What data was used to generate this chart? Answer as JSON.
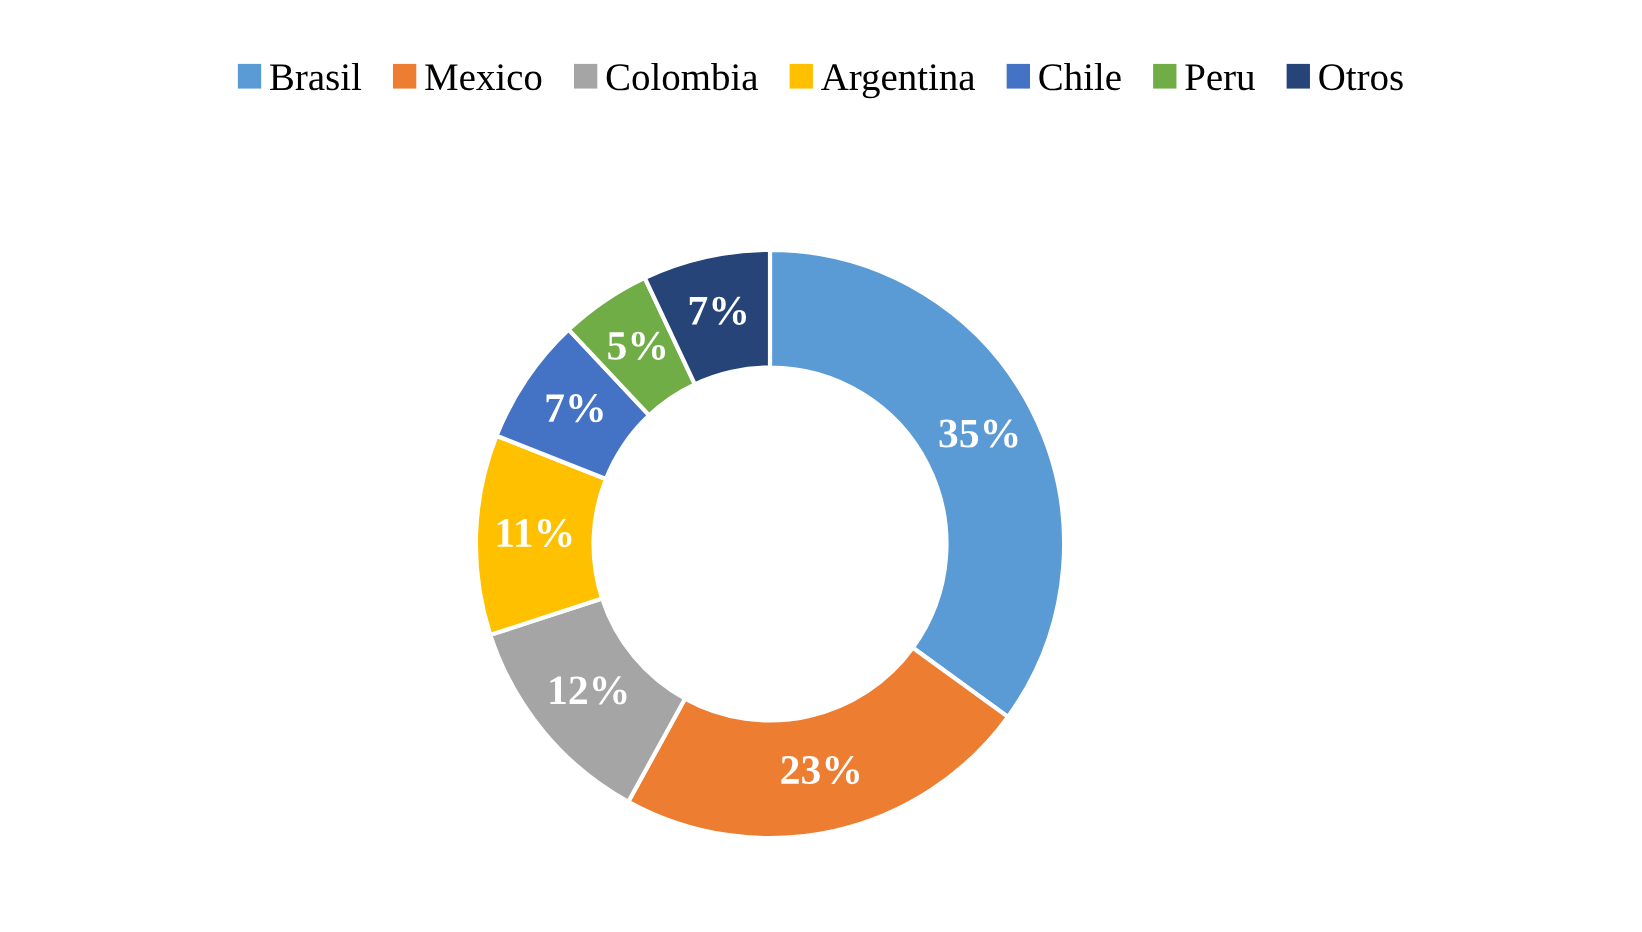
{
  "chart_data": {
    "type": "donut",
    "categories": [
      "Brasil",
      "Mexico",
      "Colombia",
      "Argentina",
      "Chile",
      "Peru",
      "Otros"
    ],
    "values": [
      35,
      23,
      12,
      11,
      7,
      5,
      7
    ],
    "colors": [
      "#5b9bd5",
      "#ed7d31",
      "#a5a5a5",
      "#ffc000",
      "#4472c4",
      "#70ad47",
      "#264478"
    ],
    "value_labels": [
      "35%",
      "23%",
      "12%",
      "11%",
      "7%",
      "5%",
      "7%"
    ],
    "legend": "top"
  }
}
